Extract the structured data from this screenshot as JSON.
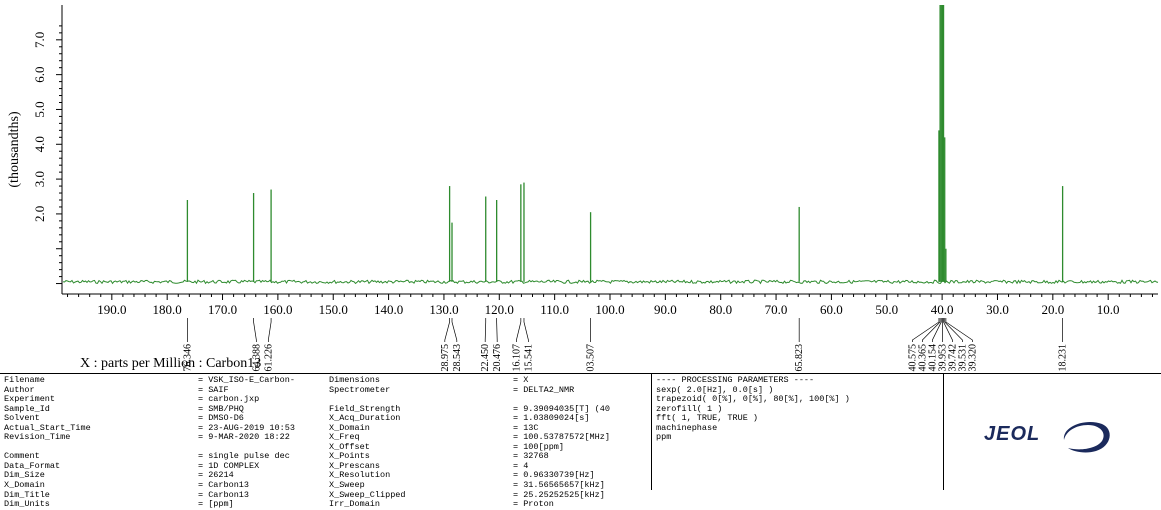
{
  "chart_data": {
    "type": "line",
    "title": "",
    "xlabel": "X : parts per Million : Carbon13",
    "ylabel": "(thousandths)",
    "xlim": [
      199.0,
      1.0
    ],
    "ylim": [
      -0.3,
      8.0
    ],
    "x_ticks": [
      190.0,
      180.0,
      170.0,
      160.0,
      150.0,
      140.0,
      130.0,
      120.0,
      110.0,
      100.0,
      90.0,
      80.0,
      70.0,
      60.0,
      50.0,
      40.0,
      30.0,
      20.0,
      10.0
    ],
    "x_tick_labels": [
      "190.0",
      "180.0",
      "170.0",
      "160.0",
      "150.0",
      "140.0",
      "130.0",
      "120.0",
      "110.0",
      "100.0",
      "90.0",
      "80.0",
      "70.0",
      "60.0",
      "50.0",
      "40.0",
      "30.0",
      "20.0",
      "10.0"
    ],
    "y_ticks": [
      2.0,
      3.0,
      4.0,
      5.0,
      6.0,
      7.0
    ],
    "y_tick_labels": [
      "2.0",
      "3.0",
      "4.0",
      "5.0",
      "6.0",
      "7.0"
    ],
    "grid": false,
    "baseline": 0.05,
    "series_color": "#2e8b2e",
    "peaks": [
      {
        "x": 176.346,
        "y": 2.4
      },
      {
        "x": 164.388,
        "y": 2.6
      },
      {
        "x": 161.226,
        "y": 2.7
      },
      {
        "x": 128.975,
        "y": 2.8
      },
      {
        "x": 128.543,
        "y": 1.75
      },
      {
        "x": 122.45,
        "y": 2.5
      },
      {
        "x": 120.476,
        "y": 2.4
      },
      {
        "x": 116.107,
        "y": 2.85
      },
      {
        "x": 115.541,
        "y": 2.9
      },
      {
        "x": 103.507,
        "y": 2.05
      },
      {
        "x": 65.823,
        "y": 2.2
      },
      {
        "x": 40.575,
        "y": 4.4
      },
      {
        "x": 40.365,
        "y": 8.0
      },
      {
        "x": 40.154,
        "y": 8.0
      },
      {
        "x": 39.953,
        "y": 8.0
      },
      {
        "x": 39.742,
        "y": 8.0
      },
      {
        "x": 39.531,
        "y": 4.2
      },
      {
        "x": 39.32,
        "y": 1.0
      },
      {
        "x": 18.231,
        "y": 2.8
      }
    ],
    "peak_label_groups": [
      {
        "labels": [
          "176.346"
        ],
        "x": [
          176.346
        ]
      },
      {
        "labels": [
          "164.388",
          "161.226"
        ],
        "x": [
          164.388,
          161.226
        ]
      },
      {
        "labels": [
          "128.975",
          "128.543"
        ],
        "x": [
          128.975,
          128.543
        ]
      },
      {
        "labels": [
          "122.450",
          "120.476"
        ],
        "x": [
          122.45,
          120.476
        ]
      },
      {
        "labels": [
          "116.107",
          "115.541"
        ],
        "x": [
          116.107,
          115.541
        ]
      },
      {
        "labels": [
          "103.507"
        ],
        "x": [
          103.507
        ]
      },
      {
        "labels": [
          "65.823"
        ],
        "x": [
          65.823
        ]
      },
      {
        "labels": [
          "40.575",
          "40.365",
          "40.154",
          "39.953",
          "39.742",
          "39.531",
          "39.320"
        ],
        "x": [
          40.575,
          40.365,
          40.154,
          39.953,
          39.742,
          39.531,
          39.32
        ]
      },
      {
        "labels": [
          "18.231"
        ],
        "x": [
          18.231
        ]
      }
    ]
  },
  "params": {
    "col1_keys": [
      "Filename",
      "Author",
      "Experiment",
      "Sample_Id",
      "Solvent",
      "Actual_Start_Time",
      "Revision_Time",
      "",
      "Comment",
      "Data_Format",
      "Dim_Size",
      "X_Domain",
      "Dim_Title",
      "Dim_Units"
    ],
    "col1_vals": [
      "= VSK_ISO-E_Carbon-",
      "= SAIF",
      "= carbon.jxp",
      "= SMB/PHQ",
      "= DMSO-D6",
      "= 23-AUG-2019 10:53",
      "= 9-MAR-2020 18:22",
      "",
      "= single pulse dec",
      "= 1D COMPLEX",
      "= 26214",
      "= Carbon13",
      "= Carbon13",
      "= [ppm]"
    ],
    "col2_keys": [
      "Dimensions",
      "Spectrometer",
      "",
      "Field_Strength",
      "X_Acq_Duration",
      "X_Domain",
      "X_Freq",
      "X_Offset",
      "X_Points",
      "X_Prescans",
      "X_Resolution",
      "X_Sweep",
      "X_Sweep_Clipped",
      "Irr_Domain"
    ],
    "col2_vals": [
      "= X",
      "= DELTA2_NMR",
      "",
      "= 9.39094035[T] (40",
      "= 1.03809024[s]",
      "= 13C",
      "= 100.53787572[MHz]",
      "= 100[ppm]",
      "= 32768",
      "= 4",
      "= 0.96330739[Hz]",
      "= 31.56565657[kHz]",
      "= 25.25252525[kHz]",
      "= Proton"
    ],
    "processing": [
      "---- PROCESSING PARAMETERS ----",
      "sexp( 2.0[Hz], 0.0[s] )",
      "trapezoid( 0[%], 0[%], 80[%], 100[%] )",
      "zerofill( 1 )",
      "fft( 1, TRUE, TRUE )",
      "machinephase",
      "ppm"
    ],
    "logo_text": "JEOL"
  }
}
